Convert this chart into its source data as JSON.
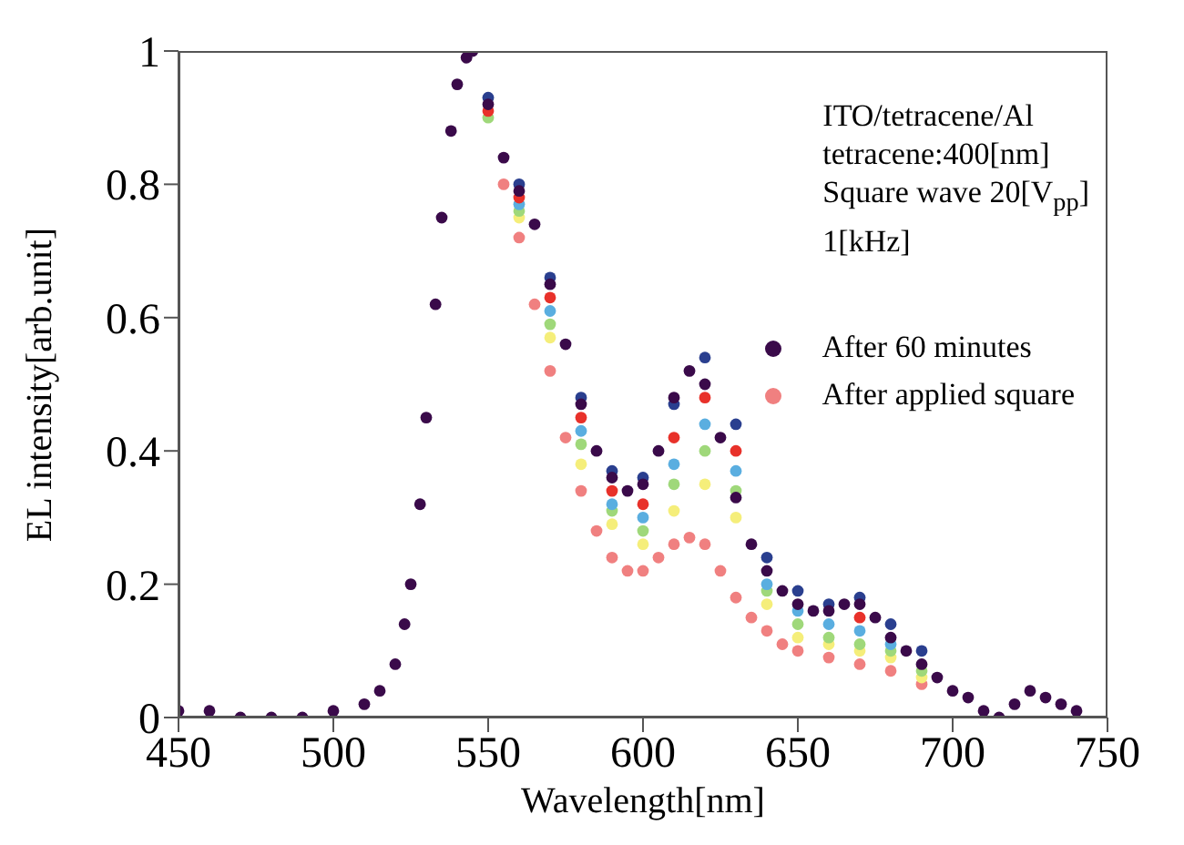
{
  "chart_data": {
    "type": "scatter",
    "xlabel": "Wavelength[nm]",
    "ylabel": "EL intensity[arb.unit]",
    "annotations": [
      "ITO/tetracene/Al",
      "tetracene:400[nm]",
      "Square wave 20[V$_{pp}$]",
      "1[kHz]"
    ],
    "xlim": [
      450,
      750
    ],
    "xticks": [
      450,
      500,
      550,
      600,
      650,
      700,
      750
    ],
    "ylim": [
      0,
      1
    ],
    "yticks": [
      0,
      0.2,
      0.4,
      0.6,
      0.8,
      1
    ],
    "grid": false,
    "legend": "top right",
    "marker": "circle",
    "series": [
      {
        "name": "After 60 minutes",
        "color": "#3a0a4a",
        "x": [
          450,
          460,
          470,
          480,
          490,
          500,
          510,
          515,
          520,
          523,
          525,
          528,
          530,
          533,
          535,
          538,
          540,
          543,
          545,
          550,
          555,
          560,
          565,
          570,
          575,
          580,
          585,
          590,
          595,
          600,
          605,
          610,
          615,
          620,
          625,
          630,
          635,
          640,
          645,
          650,
          655,
          660,
          665,
          670,
          675,
          680,
          685,
          690,
          695,
          700,
          705,
          710,
          715,
          720,
          725,
          730,
          735,
          740
        ],
        "values": [
          0.01,
          0.01,
          0.0,
          0.0,
          0.0,
          0.01,
          0.02,
          0.04,
          0.08,
          0.14,
          0.2,
          0.32,
          0.45,
          0.62,
          0.75,
          0.88,
          0.95,
          0.99,
          1.0,
          0.92,
          0.84,
          0.79,
          0.74,
          0.65,
          0.56,
          0.47,
          0.4,
          0.36,
          0.34,
          0.35,
          0.4,
          0.48,
          0.52,
          0.5,
          0.42,
          0.33,
          0.26,
          0.22,
          0.19,
          0.17,
          0.16,
          0.16,
          0.17,
          0.17,
          0.15,
          0.12,
          0.1,
          0.08,
          0.06,
          0.04,
          0.03,
          0.01,
          0.0,
          0.02,
          0.04,
          0.03,
          0.02,
          0.01
        ]
      },
      {
        "color": "#2a3f8f",
        "x": [
          550,
          560,
          570,
          580,
          590,
          600,
          610,
          620,
          630,
          640,
          650,
          660,
          670,
          680,
          690
        ],
        "values": [
          0.93,
          0.8,
          0.66,
          0.48,
          0.37,
          0.36,
          0.47,
          0.54,
          0.44,
          0.24,
          0.19,
          0.17,
          0.18,
          0.14,
          0.1
        ]
      },
      {
        "color": "#e8312a",
        "x": [
          550,
          560,
          570,
          580,
          590,
          600,
          610,
          620,
          630,
          670
        ],
        "values": [
          0.91,
          0.78,
          0.63,
          0.45,
          0.34,
          0.32,
          0.42,
          0.48,
          0.4,
          0.15
        ]
      },
      {
        "color": "#5aaee0",
        "x": [
          560,
          570,
          580,
          590,
          600,
          610,
          620,
          630,
          640,
          650,
          660,
          670,
          680
        ],
        "values": [
          0.77,
          0.61,
          0.43,
          0.32,
          0.3,
          0.38,
          0.44,
          0.37,
          0.2,
          0.16,
          0.14,
          0.13,
          0.11
        ]
      },
      {
        "color": "#9fd87a",
        "x": [
          550,
          560,
          570,
          580,
          590,
          600,
          610,
          620,
          630,
          640,
          650,
          660,
          670,
          680,
          690
        ],
        "values": [
          0.9,
          0.76,
          0.59,
          0.41,
          0.31,
          0.28,
          0.35,
          0.4,
          0.34,
          0.19,
          0.14,
          0.12,
          0.11,
          0.1,
          0.07
        ]
      },
      {
        "color": "#f5ee7a",
        "x": [
          560,
          570,
          580,
          590,
          600,
          610,
          620,
          630,
          640,
          650,
          660,
          670,
          680,
          690
        ],
        "values": [
          0.75,
          0.57,
          0.38,
          0.29,
          0.26,
          0.31,
          0.35,
          0.3,
          0.17,
          0.12,
          0.11,
          0.1,
          0.09,
          0.06
        ]
      },
      {
        "name": "After applied square",
        "color": "#f08080",
        "x": [
          555,
          560,
          565,
          570,
          575,
          580,
          585,
          590,
          595,
          600,
          605,
          610,
          615,
          620,
          625,
          630,
          635,
          640,
          645,
          650,
          660,
          670,
          680,
          690
        ],
        "values": [
          0.8,
          0.72,
          0.62,
          0.52,
          0.42,
          0.34,
          0.28,
          0.24,
          0.22,
          0.22,
          0.24,
          0.26,
          0.27,
          0.26,
          0.22,
          0.18,
          0.15,
          0.13,
          0.11,
          0.1,
          0.09,
          0.08,
          0.07,
          0.05
        ]
      }
    ]
  }
}
